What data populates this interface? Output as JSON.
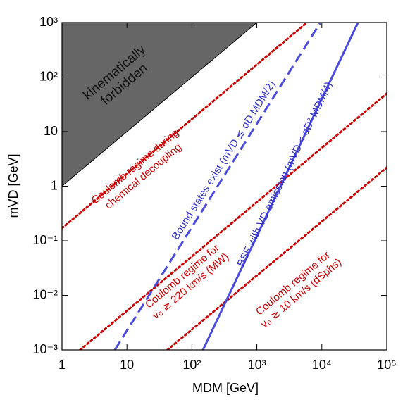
{
  "chart_data": {
    "type": "line",
    "xlabel": "MDM  [GeV]",
    "ylabel": "mVD  [GeV]",
    "xscale": "log",
    "yscale": "log",
    "xlim": [
      1,
      100000
    ],
    "ylim": [
      0.001,
      1000
    ],
    "xticks": [
      1,
      10,
      {
        "value": 100,
        "label": "10²"
      },
      {
        "value": 1000,
        "label": "10³"
      },
      {
        "value": 10000,
        "label": "10⁴"
      },
      {
        "value": 100000,
        "label": "10⁵"
      }
    ],
    "yticks": [
      {
        "value": 0.001,
        "label": "10⁻³"
      },
      {
        "value": 0.01,
        "label": "10⁻²"
      },
      {
        "value": 0.1,
        "label": "10⁻¹"
      },
      1,
      10,
      {
        "value": 100,
        "label": "10²"
      },
      {
        "value": 1000,
        "label": "10³"
      }
    ],
    "series": [
      {
        "style": "fill",
        "color": "#666666",
        "x": [
          1,
          1,
          1000
        ],
        "values": [
          1,
          1000,
          1000
        ]
      },
      {
        "style": "dotted",
        "color": "#cc0000",
        "x": [
          1,
          5900
        ],
        "values": [
          0.17,
          1000
        ]
      },
      {
        "style": "dotted",
        "color": "#cc0000",
        "x": [
          1.9,
          100000
        ],
        "values": [
          0.001,
          50
        ]
      },
      {
        "style": "dotted",
        "color": "#cc0000",
        "x": [
          42,
          100000
        ],
        "values": [
          0.001,
          2.2
        ]
      },
      {
        "style": "dashed",
        "color": "#4a4adc",
        "x": [
          6.5,
          9500
        ],
        "values": [
          0.001,
          1000
        ]
      },
      {
        "style": "solid",
        "color": "#4a4adc",
        "x": [
          148,
          36000
        ],
        "values": [
          0.001,
          1000
        ]
      }
    ],
    "annotations": [
      {
        "color": "#111111",
        "lines": [
          "kinematically",
          "forbidden"
        ]
      },
      {
        "color": "#cc0000",
        "lines": [
          "Coulomb regime during",
          "chemical decoupling"
        ]
      },
      {
        "color": "#3030c8",
        "lines": [
          "Bound states exist (mVD ≲ αD MDM/2)"
        ]
      },
      {
        "color": "#3030c8",
        "lines": [
          "BSF with VD emission (mVD < αD² MDM/4)"
        ]
      },
      {
        "color": "#cc0000",
        "lines": [
          "Coulomb regime for",
          "v₀ ≳ 220 km/s (MW)"
        ]
      },
      {
        "color": "#cc0000",
        "lines": [
          "Coulomb regime for",
          "v₀ ≳ 10 km/s (dSphs)"
        ]
      }
    ]
  }
}
